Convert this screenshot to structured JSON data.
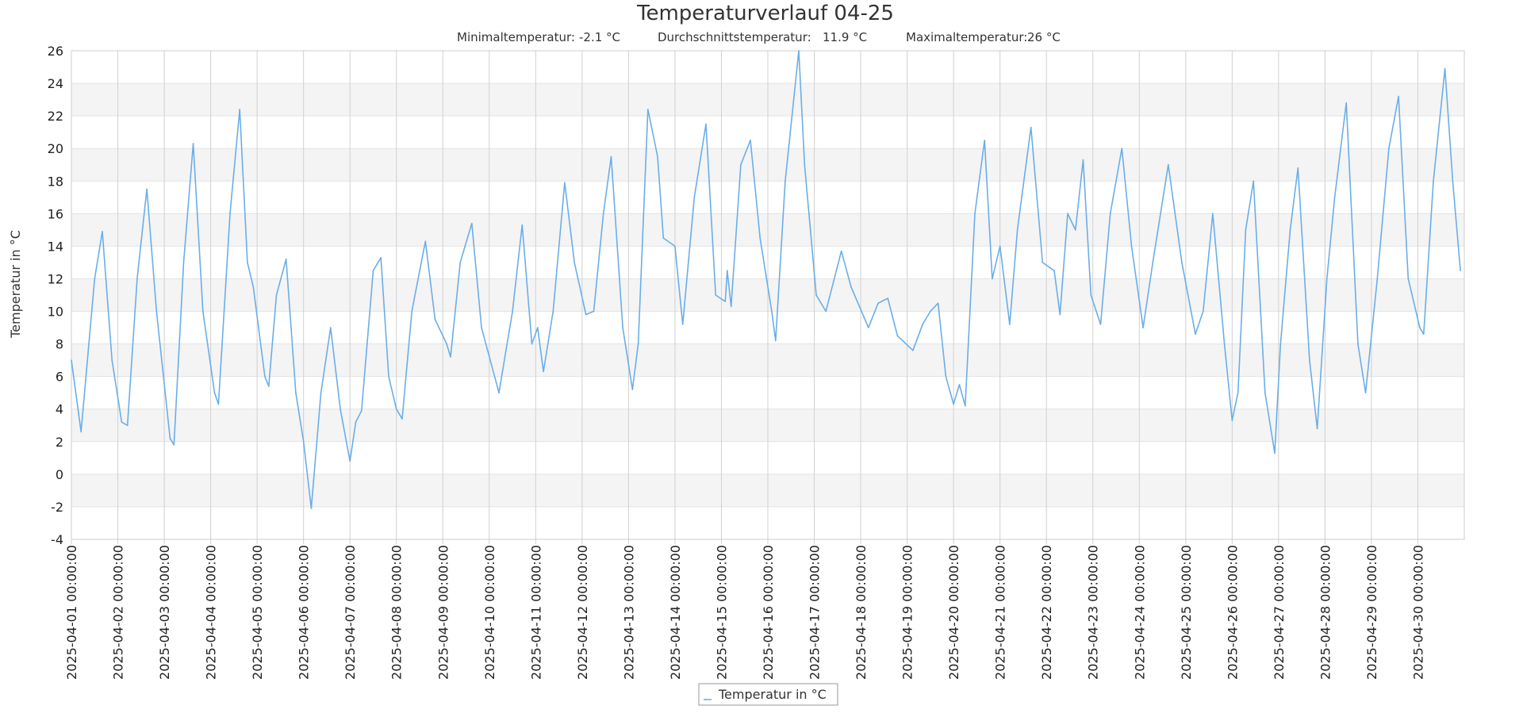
{
  "chart_data": {
    "type": "line",
    "title": "Temperaturverlauf 04-25",
    "subtitle_stats": [
      {
        "label": "Minimaltemperatur:",
        "value": "-2.1 °C"
      },
      {
        "label": "Durchschnittstemperatur:",
        "value": "11.9 °C"
      },
      {
        "label": "Maximaltemperatur:",
        "value": "26 °C"
      }
    ],
    "ylabel": "Temperatur in °C",
    "ylim": [
      -4,
      26
    ],
    "yticks": [
      -4,
      -2,
      0,
      2,
      4,
      6,
      8,
      10,
      12,
      14,
      16,
      18,
      20,
      22,
      24,
      26
    ],
    "xlim": [
      "2025-04-01 00:00",
      "2025-05-01 00:00"
    ],
    "xticks": [
      "2025-04-01 00:00:00",
      "2025-04-02 00:00:00",
      "2025-04-03 00:00:00",
      "2025-04-04 00:00:00",
      "2025-04-05 00:00:00",
      "2025-04-06 00:00:00",
      "2025-04-07 00:00:00",
      "2025-04-08 00:00:00",
      "2025-04-09 00:00:00",
      "2025-04-10 00:00:00",
      "2025-04-11 00:00:00",
      "2025-04-12 00:00:00",
      "2025-04-13 00:00:00",
      "2025-04-14 00:00:00",
      "2025-04-15 00:00:00",
      "2025-04-16 00:00:00",
      "2025-04-17 00:00:00",
      "2025-04-18 00:00:00",
      "2025-04-19 00:00:00",
      "2025-04-20 00:00:00",
      "2025-04-21 00:00:00",
      "2025-04-22 00:00:00",
      "2025-04-23 00:00:00",
      "2025-04-24 00:00:00",
      "2025-04-25 00:00:00",
      "2025-04-26 00:00:00",
      "2025-04-27 00:00:00",
      "2025-04-28 00:00:00",
      "2025-04-29 00:00:00",
      "2025-04-30 00:00:00"
    ],
    "grid": true,
    "legend_position": "bottom-center",
    "series": [
      {
        "name": "Temperatur in °C",
        "color": "#6aaee8",
        "points": [
          [
            "2025-04-01 00:00",
            7.0
          ],
          [
            "2025-04-01 05:00",
            2.6
          ],
          [
            "2025-04-01 12:00",
            12.0
          ],
          [
            "2025-04-01 16:00",
            14.9
          ],
          [
            "2025-04-01 21:00",
            7.0
          ],
          [
            "2025-04-02 02:00",
            3.2
          ],
          [
            "2025-04-02 05:00",
            3.0
          ],
          [
            "2025-04-02 10:00",
            12.0
          ],
          [
            "2025-04-02 15:00",
            17.5
          ],
          [
            "2025-04-02 20:00",
            10.0
          ],
          [
            "2025-04-03 03:00",
            2.2
          ],
          [
            "2025-04-03 05:00",
            1.8
          ],
          [
            "2025-04-03 10:00",
            13.0
          ],
          [
            "2025-04-03 15:00",
            20.3
          ],
          [
            "2025-04-03 20:00",
            10.0
          ],
          [
            "2025-04-04 02:00",
            5.0
          ],
          [
            "2025-04-04 04:00",
            4.3
          ],
          [
            "2025-04-04 10:00",
            16.0
          ],
          [
            "2025-04-04 15:00",
            22.4
          ],
          [
            "2025-04-04 19:00",
            13.0
          ],
          [
            "2025-04-04 22:00",
            11.5
          ],
          [
            "2025-04-05 04:00",
            6.0
          ],
          [
            "2025-04-05 06:00",
            5.4
          ],
          [
            "2025-04-05 10:00",
            11.0
          ],
          [
            "2025-04-05 15:00",
            13.2
          ],
          [
            "2025-04-05 20:00",
            5.0
          ],
          [
            "2025-04-06 00:00",
            2.0
          ],
          [
            "2025-04-06 04:00",
            -2.1
          ],
          [
            "2025-04-06 09:00",
            5.0
          ],
          [
            "2025-04-06 14:00",
            9.0
          ],
          [
            "2025-04-06 19:00",
            4.0
          ],
          [
            "2025-04-07 00:00",
            0.8
          ],
          [
            "2025-04-07 03:00",
            3.2
          ],
          [
            "2025-04-07 06:00",
            3.9
          ],
          [
            "2025-04-07 12:00",
            12.5
          ],
          [
            "2025-04-07 16:00",
            13.3
          ],
          [
            "2025-04-07 20:00",
            6.0
          ],
          [
            "2025-04-08 00:00",
            4.0
          ],
          [
            "2025-04-08 03:00",
            3.4
          ],
          [
            "2025-04-08 08:00",
            10.0
          ],
          [
            "2025-04-08 15:00",
            14.3
          ],
          [
            "2025-04-08 20:00",
            9.5
          ],
          [
            "2025-04-09 02:00",
            8.0
          ],
          [
            "2025-04-09 04:00",
            7.2
          ],
          [
            "2025-04-09 09:00",
            13.0
          ],
          [
            "2025-04-09 15:00",
            15.4
          ],
          [
            "2025-04-09 20:00",
            9.0
          ],
          [
            "2025-04-10 03:00",
            5.9
          ],
          [
            "2025-04-10 05:00",
            5.0
          ],
          [
            "2025-04-10 12:00",
            10.0
          ],
          [
            "2025-04-10 17:00",
            15.3
          ],
          [
            "2025-04-10 22:00",
            8.0
          ],
          [
            "2025-04-11 01:00",
            9.0
          ],
          [
            "2025-04-11 04:00",
            6.3
          ],
          [
            "2025-04-11 09:00",
            10.0
          ],
          [
            "2025-04-11 15:00",
            17.9
          ],
          [
            "2025-04-11 20:00",
            13.0
          ],
          [
            "2025-04-12 02:00",
            9.8
          ],
          [
            "2025-04-12 06:00",
            10.0
          ],
          [
            "2025-04-12 11:00",
            16.0
          ],
          [
            "2025-04-12 15:00",
            19.5
          ],
          [
            "2025-04-12 21:00",
            9.0
          ],
          [
            "2025-04-13 02:00",
            5.2
          ],
          [
            "2025-04-13 05:00",
            8.0
          ],
          [
            "2025-04-13 10:00",
            22.4
          ],
          [
            "2025-04-13 15:00",
            19.5
          ],
          [
            "2025-04-13 18:00",
            14.5
          ],
          [
            "2025-04-14 00:00",
            14.0
          ],
          [
            "2025-04-14 04:00",
            9.2
          ],
          [
            "2025-04-14 10:00",
            17.0
          ],
          [
            "2025-04-14 16:00",
            21.5
          ],
          [
            "2025-04-14 21:00",
            11.0
          ],
          [
            "2025-04-15 02:00",
            10.6
          ],
          [
            "2025-04-15 03:00",
            12.5
          ],
          [
            "2025-04-15 05:00",
            10.3
          ],
          [
            "2025-04-15 10:00",
            19.0
          ],
          [
            "2025-04-15 15:00",
            20.5
          ],
          [
            "2025-04-15 20:00",
            14.5
          ],
          [
            "2025-04-16 02:00",
            10.0
          ],
          [
            "2025-04-16 04:00",
            8.2
          ],
          [
            "2025-04-16 09:00",
            18.0
          ],
          [
            "2025-04-16 16:00",
            26.0
          ],
          [
            "2025-04-16 19:00",
            19.0
          ],
          [
            "2025-04-17 01:00",
            11.0
          ],
          [
            "2025-04-17 06:00",
            10.0
          ],
          [
            "2025-04-17 14:00",
            13.7
          ],
          [
            "2025-04-17 19:00",
            11.5
          ],
          [
            "2025-04-18 04:00",
            9.0
          ],
          [
            "2025-04-18 09:00",
            10.5
          ],
          [
            "2025-04-18 14:00",
            10.8
          ],
          [
            "2025-04-18 19:00",
            8.5
          ],
          [
            "2025-04-19 03:00",
            7.6
          ],
          [
            "2025-04-19 08:00",
            9.2
          ],
          [
            "2025-04-19 12:00",
            10.0
          ],
          [
            "2025-04-19 16:00",
            10.5
          ],
          [
            "2025-04-19 20:00",
            6.0
          ],
          [
            "2025-04-20 00:00",
            4.3
          ],
          [
            "2025-04-20 03:00",
            5.5
          ],
          [
            "2025-04-20 06:00",
            4.2
          ],
          [
            "2025-04-20 11:00",
            16.0
          ],
          [
            "2025-04-20 16:00",
            20.5
          ],
          [
            "2025-04-20 20:00",
            12.0
          ],
          [
            "2025-04-21 00:00",
            14.0
          ],
          [
            "2025-04-21 05:00",
            9.2
          ],
          [
            "2025-04-21 09:00",
            15.0
          ],
          [
            "2025-04-21 16:00",
            21.3
          ],
          [
            "2025-04-21 22:00",
            13.0
          ],
          [
            "2025-04-22 04:00",
            12.5
          ],
          [
            "2025-04-22 07:00",
            9.8
          ],
          [
            "2025-04-22 11:00",
            16.0
          ],
          [
            "2025-04-22 15:00",
            15.0
          ],
          [
            "2025-04-22 19:00",
            19.3
          ],
          [
            "2025-04-22 23:00",
            11.0
          ],
          [
            "2025-04-23 04:00",
            9.2
          ],
          [
            "2025-04-23 09:00",
            16.0
          ],
          [
            "2025-04-23 15:00",
            20.0
          ],
          [
            "2025-04-23 20:00",
            14.0
          ],
          [
            "2025-04-24 02:00",
            9.0
          ],
          [
            "2025-04-24 07:00",
            13.0
          ],
          [
            "2025-04-24 15:00",
            19.0
          ],
          [
            "2025-04-24 22:00",
            13.0
          ],
          [
            "2025-04-25 05:00",
            8.6
          ],
          [
            "2025-04-25 09:00",
            10.0
          ],
          [
            "2025-04-25 14:00",
            16.0
          ],
          [
            "2025-04-25 20:00",
            8.0
          ],
          [
            "2025-04-26 00:00",
            3.3
          ],
          [
            "2025-04-26 03:00",
            5.0
          ],
          [
            "2025-04-26 07:00",
            15.0
          ],
          [
            "2025-04-26 11:00",
            18.0
          ],
          [
            "2025-04-26 17:00",
            5.0
          ],
          [
            "2025-04-26 22:00",
            1.3
          ],
          [
            "2025-04-27 01:00",
            8.0
          ],
          [
            "2025-04-27 06:00",
            15.0
          ],
          [
            "2025-04-27 10:00",
            18.8
          ],
          [
            "2025-04-27 16:00",
            7.0
          ],
          [
            "2025-04-27 20:00",
            2.8
          ],
          [
            "2025-04-28 01:00",
            12.0
          ],
          [
            "2025-04-28 05:00",
            17.0
          ],
          [
            "2025-04-28 11:00",
            22.8
          ],
          [
            "2025-04-28 17:00",
            8.0
          ],
          [
            "2025-04-28 21:00",
            5.0
          ],
          [
            "2025-04-29 03:00",
            12.0
          ],
          [
            "2025-04-29 09:00",
            20.0
          ],
          [
            "2025-04-29 14:00",
            23.2
          ],
          [
            "2025-04-29 19:00",
            12.0
          ],
          [
            "2025-04-30 01:00",
            9.0
          ],
          [
            "2025-04-30 03:00",
            8.6
          ],
          [
            "2025-04-30 08:00",
            18.0
          ],
          [
            "2025-04-30 14:00",
            24.9
          ],
          [
            "2025-04-30 18:00",
            18.0
          ],
          [
            "2025-04-30 22:00",
            12.5
          ]
        ]
      }
    ]
  }
}
